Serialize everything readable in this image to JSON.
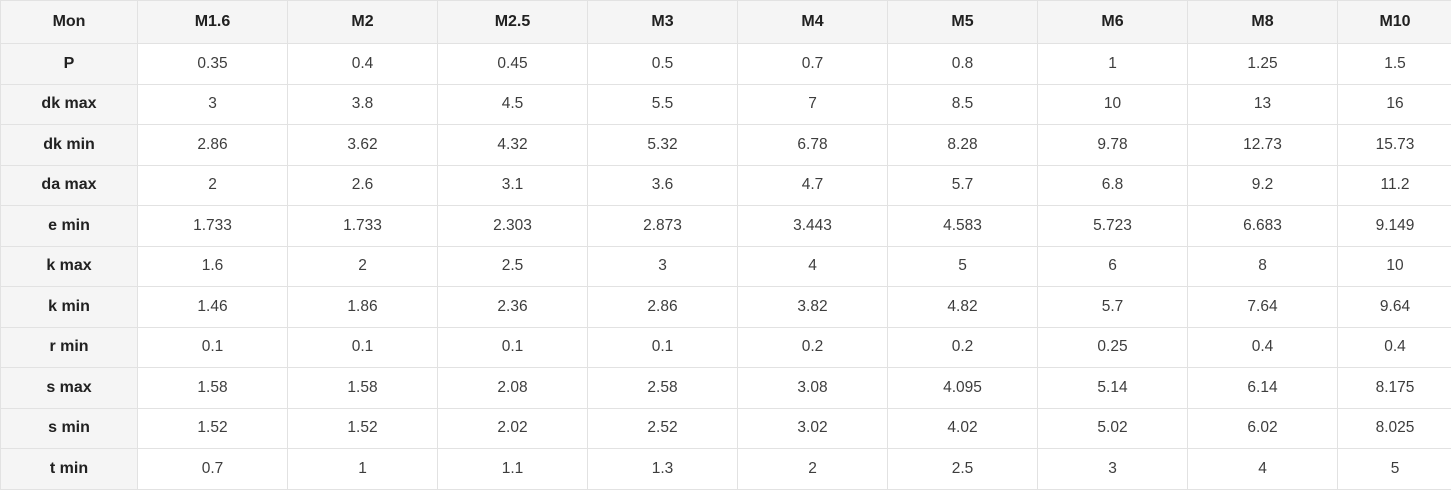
{
  "table": {
    "corner_label": "Mon",
    "columns": [
      "M1.6",
      "M2",
      "M2.5",
      "M3",
      "M4",
      "M5",
      "M6",
      "M8",
      "M10"
    ],
    "rows": [
      {
        "label": "P",
        "values": [
          "0.35",
          "0.4",
          "0.45",
          "0.5",
          "0.7",
          "0.8",
          "1",
          "1.25",
          "1.5"
        ]
      },
      {
        "label": "dk max",
        "values": [
          "3",
          "3.8",
          "4.5",
          "5.5",
          "7",
          "8.5",
          "10",
          "13",
          "16"
        ]
      },
      {
        "label": "dk min",
        "values": [
          "2.86",
          "3.62",
          "4.32",
          "5.32",
          "6.78",
          "8.28",
          "9.78",
          "12.73",
          "15.73"
        ]
      },
      {
        "label": "da max",
        "values": [
          "2",
          "2.6",
          "3.1",
          "3.6",
          "4.7",
          "5.7",
          "6.8",
          "9.2",
          "11.2"
        ]
      },
      {
        "label": "e min",
        "values": [
          "1.733",
          "1.733",
          "2.303",
          "2.873",
          "3.443",
          "4.583",
          "5.723",
          "6.683",
          "9.149"
        ]
      },
      {
        "label": "k max",
        "values": [
          "1.6",
          "2",
          "2.5",
          "3",
          "4",
          "5",
          "6",
          "8",
          "10"
        ]
      },
      {
        "label": "k min",
        "values": [
          "1.46",
          "1.86",
          "2.36",
          "2.86",
          "3.82",
          "4.82",
          "5.7",
          "7.64",
          "9.64"
        ]
      },
      {
        "label": "r min",
        "values": [
          "0.1",
          "0.1",
          "0.1",
          "0.1",
          "0.2",
          "0.2",
          "0.25",
          "0.4",
          "0.4"
        ]
      },
      {
        "label": "s max",
        "values": [
          "1.58",
          "1.58",
          "2.08",
          "2.58",
          "3.08",
          "4.095",
          "5.14",
          "6.14",
          "8.175"
        ]
      },
      {
        "label": "s min",
        "values": [
          "1.52",
          "1.52",
          "2.02",
          "2.52",
          "3.02",
          "4.02",
          "5.02",
          "6.02",
          "8.025"
        ]
      },
      {
        "label": "t min",
        "values": [
          "0.7",
          "1",
          "1.1",
          "1.3",
          "2",
          "2.5",
          "3",
          "4",
          "5"
        ]
      }
    ],
    "colors": {
      "header_bg": "#f5f5f5",
      "border": "#e2e2e2",
      "header_text": "#212121",
      "cell_text": "#3d3d3d",
      "cell_bg": "#ffffff"
    }
  }
}
